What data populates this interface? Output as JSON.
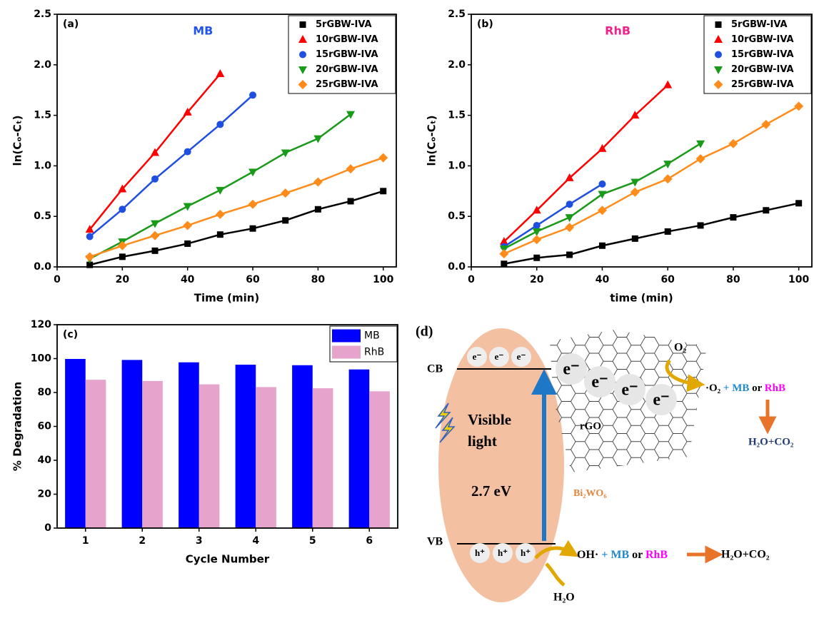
{
  "chart_data": [
    {
      "type": "line",
      "panel_label": "(a)",
      "annotation": "MB",
      "annotation_color": "#2255ee",
      "x_label": "Time (min)",
      "y_label": "ln(Cₒ-Cₜ)",
      "xlim": [
        0,
        104
      ],
      "ylim": [
        0,
        2.5
      ],
      "xticks": [
        0,
        20,
        40,
        60,
        80,
        100
      ],
      "yticks": [
        {
          "value": 0,
          "label": "0.0"
        },
        0.5,
        {
          "value": 1,
          "label": "1.0"
        },
        1.5,
        {
          "value": 2,
          "label": "2.0"
        },
        2.5
      ],
      "legend": "upper right",
      "series": [
        {
          "name": "5rGBW-IVA",
          "color": "#000000",
          "marker": "square",
          "x": [
            10,
            20,
            30,
            40,
            50,
            60,
            70,
            80,
            90,
            100
          ],
          "values": [
            0.02,
            0.1,
            0.16,
            0.23,
            0.32,
            0.38,
            0.46,
            0.57,
            0.65,
            0.75
          ]
        },
        {
          "name": "10rGBW-IVA",
          "color": "#ff0000",
          "marker": "triangle-up",
          "x": [
            10,
            20,
            30,
            40,
            50
          ],
          "values": [
            0.37,
            0.77,
            1.13,
            1.53,
            1.91
          ]
        },
        {
          "name": "15rGBW-IVA",
          "color": "#1f4fe0",
          "marker": "circle",
          "x": [
            10,
            20,
            30,
            40,
            50,
            60
          ],
          "values": [
            0.3,
            0.57,
            0.87,
            1.14,
            1.41,
            1.7
          ]
        },
        {
          "name": "20rGBW-IVA",
          "color": "#1a9a1a",
          "marker": "triangle-down",
          "x": [
            10,
            20,
            30,
            40,
            50,
            60,
            70,
            80,
            90
          ],
          "values": [
            0.08,
            0.25,
            0.43,
            0.6,
            0.76,
            0.94,
            1.13,
            1.27,
            1.51
          ]
        },
        {
          "name": "25rGBW-IVA",
          "color": "#ff8c1a",
          "marker": "diamond",
          "x": [
            10,
            20,
            30,
            40,
            50,
            60,
            70,
            80,
            90,
            100
          ],
          "values": [
            0.1,
            0.21,
            0.31,
            0.41,
            0.52,
            0.62,
            0.73,
            0.84,
            0.97,
            1.08
          ]
        }
      ]
    },
    {
      "type": "line",
      "panel_label": "(b)",
      "annotation": "RhB",
      "annotation_color": "#ee2288",
      "x_label": "time (min)",
      "y_label": "ln(Cₒ-Cₜ)",
      "xlim": [
        0,
        104
      ],
      "ylim": [
        0,
        2.5
      ],
      "xticks": [
        0,
        20,
        40,
        60,
        80,
        100
      ],
      "yticks": [
        {
          "value": 0,
          "label": "0.0"
        },
        0.5,
        {
          "value": 1,
          "label": "1.0"
        },
        1.5,
        {
          "value": 2,
          "label": "2.0"
        },
        2.5
      ],
      "legend": "upper right",
      "series": [
        {
          "name": "5rGBW-IVA",
          "color": "#000000",
          "marker": "square",
          "x": [
            10,
            20,
            30,
            40,
            50,
            60,
            70,
            80,
            90,
            100
          ],
          "values": [
            0.03,
            0.09,
            0.12,
            0.21,
            0.28,
            0.35,
            0.41,
            0.49,
            0.56,
            0.63
          ]
        },
        {
          "name": "10rGBW-IVA",
          "color": "#ff0000",
          "marker": "triangle-up",
          "x": [
            10,
            20,
            30,
            40,
            50,
            60
          ],
          "values": [
            0.25,
            0.56,
            0.88,
            1.17,
            1.5,
            1.8
          ]
        },
        {
          "name": "15rGBW-IVA",
          "color": "#1f4fe0",
          "marker": "circle",
          "x": [
            10,
            20,
            30,
            40
          ],
          "values": [
            0.2,
            0.41,
            0.62,
            0.82
          ]
        },
        {
          "name": "20rGBW-IVA",
          "color": "#1a9a1a",
          "marker": "triangle-down",
          "x": [
            10,
            20,
            30,
            40,
            50,
            60,
            70
          ],
          "values": [
            0.18,
            0.35,
            0.49,
            0.72,
            0.84,
            1.02,
            1.22
          ]
        },
        {
          "name": "25rGBW-IVA",
          "color": "#ff8c1a",
          "marker": "diamond",
          "x": [
            10,
            20,
            30,
            40,
            50,
            60,
            70,
            80,
            90,
            100
          ],
          "values": [
            0.13,
            0.27,
            0.39,
            0.56,
            0.74,
            0.87,
            1.07,
            1.22,
            1.41,
            1.59
          ]
        }
      ]
    },
    {
      "type": "bar",
      "panel_label": "(c)",
      "x_label": "Cycle Number",
      "y_label": "% Degradation",
      "categories": [
        "1",
        "2",
        "3",
        "4",
        "5",
        "6"
      ],
      "ylim": [
        0,
        120
      ],
      "yticks": [
        0,
        20,
        40,
        60,
        80,
        100,
        120
      ],
      "legend": "upper right",
      "series": [
        {
          "name": "MB",
          "color": "#0000ff",
          "values": [
            99.8,
            99.2,
            97.8,
            96.4,
            96.1,
            93.6
          ]
        },
        {
          "name": "RhB",
          "color": "#e6a3cc",
          "values": [
            87.5,
            86.8,
            84.8,
            83.2,
            82.5,
            80.7
          ]
        }
      ]
    }
  ],
  "diagram": {
    "label": "(d)",
    "cb": "CB",
    "vb": "VB",
    "cb_electrons": [
      "e⁻",
      "e⁻",
      "e⁻"
    ],
    "holes": [
      "h⁺",
      "h⁺",
      "h⁺"
    ],
    "light": [
      "Visible",
      "light"
    ],
    "band_gap": "2.7 eV",
    "semiconductor": "Bi₂WO₆",
    "rgo": "rGO",
    "rgo_electrons": [
      "e⁻",
      "e⁻",
      "e⁻",
      "e⁻"
    ],
    "o2": "O₂",
    "superoxide": [
      "·O₂",
      " + MB",
      " or ",
      "RhB"
    ],
    "superoxide_product": "H₂O+CO₂",
    "hydroxyl": [
      "OH·",
      " + MB",
      " or ",
      "RhB"
    ],
    "hydroxyl_product": "H₂O+CO₂",
    "water": "H₂O"
  }
}
